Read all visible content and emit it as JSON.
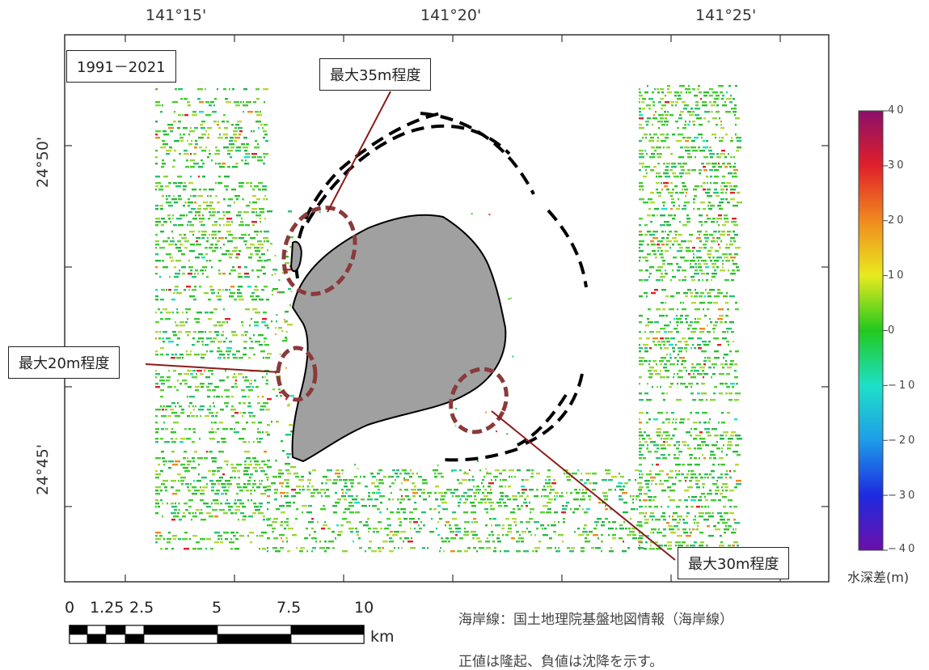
{
  "period_label": "1991－2021",
  "longitude_labels": [
    "141°15'",
    "141°20'",
    "141°25'"
  ],
  "latitude_labels": [
    "24°50'",
    "24°45'"
  ],
  "callouts": [
    {
      "id": "north",
      "text": "最大35m程度"
    },
    {
      "id": "west",
      "text": "最大20m程度"
    },
    {
      "id": "southeast",
      "text": "最大30m程度"
    }
  ],
  "legend": {
    "title": "水深差(m)",
    "ticks": [
      "40",
      "30",
      "20",
      "10",
      "0",
      "−10",
      "−20",
      "−30",
      "−40"
    ],
    "colors": [
      "#8b0f6a",
      "#e0202a",
      "#f08a1e",
      "#e8ea1e",
      "#22c81e",
      "#1ee0c8",
      "#1e9ce8",
      "#1e2ae0",
      "#6a10a8"
    ]
  },
  "scale_bar": {
    "ticks": [
      "0",
      "1.25",
      "2.5",
      "5",
      "7.5",
      "10"
    ],
    "unit": "km"
  },
  "notes": [
    "海岸線：国土地理院基盤地図情報（海岸線）",
    "正値は隆起、負値は沈降を示す。"
  ]
}
